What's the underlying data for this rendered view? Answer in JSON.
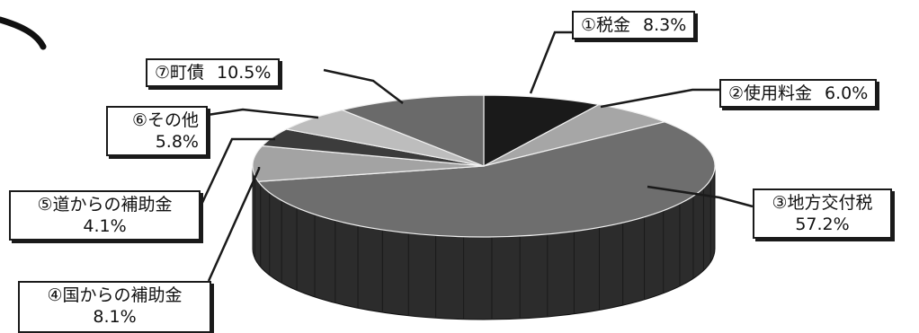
{
  "chart_data": {
    "type": "pie",
    "style": "3d",
    "slices": [
      {
        "label": "①税金",
        "value": 8.3,
        "value_label": "8.3%",
        "color": "#1a1a1a"
      },
      {
        "label": "②使用料金",
        "value": 6.0,
        "value_label": "6.0%",
        "color": "#a6a6a6"
      },
      {
        "label": "③地方交付税",
        "value": 57.2,
        "value_label": "57.2%",
        "color": "#6e6e6e"
      },
      {
        "label": "④国からの補助金",
        "value": 8.1,
        "value_label": "8.1%",
        "color": "#a3a3a3"
      },
      {
        "label": "⑤道からの補助金",
        "value": 4.1,
        "value_label": "4.1%",
        "color": "#3c3c3c"
      },
      {
        "label": "⑥その他",
        "value": 5.8,
        "value_label": "5.8%",
        "color": "#bdbdbd"
      },
      {
        "label": "⑦町債",
        "value": 10.5,
        "value_label": "10.5%",
        "color": "#6a6a6a"
      }
    ]
  }
}
